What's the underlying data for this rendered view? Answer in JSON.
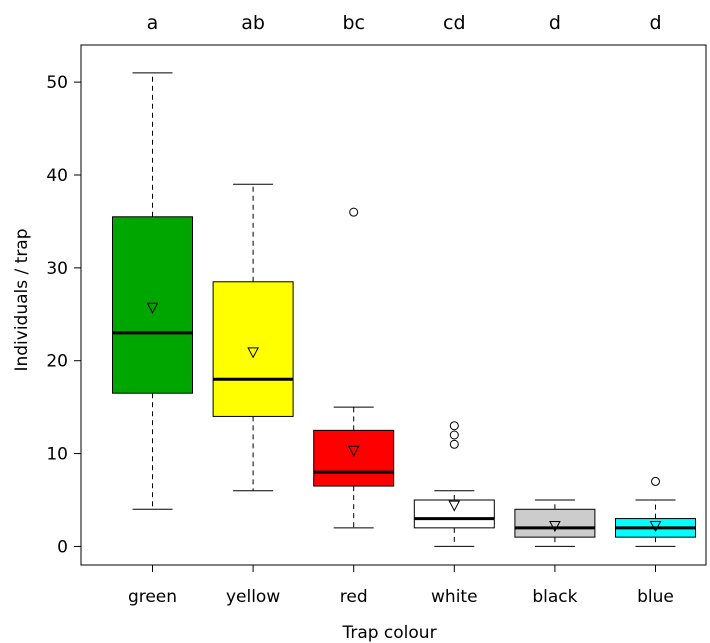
{
  "chart_data": {
    "type": "box",
    "xlabel": "Trap colour",
    "ylabel": "Individuals / trap",
    "ylim": [
      -2,
      54
    ],
    "yticks": [
      0,
      10,
      20,
      30,
      40,
      50
    ],
    "grid": false,
    "legend": "none",
    "categories": [
      "green",
      "yellow",
      "red",
      "white",
      "black",
      "blue"
    ],
    "significance_letters": [
      "a",
      "ab",
      "bc",
      "cd",
      "d",
      "d"
    ],
    "box_colors": [
      "#00a600",
      "#ffff00",
      "#ff0000",
      "#ffffff",
      "#cccccc",
      "#00ffff"
    ],
    "boxes": [
      {
        "category": "green",
        "whisker_low": 4,
        "q1": 16.5,
        "median": 23,
        "q3": 35.5,
        "whisker_high": 51,
        "mean": 25.7,
        "outliers": []
      },
      {
        "category": "yellow",
        "whisker_low": 6,
        "q1": 14,
        "median": 18,
        "q3": 28.5,
        "whisker_high": 39,
        "mean": 20.9,
        "outliers": []
      },
      {
        "category": "red",
        "whisker_low": 2,
        "q1": 6.5,
        "median": 8,
        "q3": 12.5,
        "whisker_high": 15,
        "mean": 10.3,
        "outliers": [
          36
        ]
      },
      {
        "category": "white",
        "whisker_low": 0,
        "q1": 2,
        "median": 3,
        "q3": 5,
        "whisker_high": 6,
        "mean": 4.4,
        "outliers": [
          11,
          12,
          13
        ]
      },
      {
        "category": "black",
        "whisker_low": 0,
        "q1": 1,
        "median": 2,
        "q3": 4,
        "whisker_high": 5,
        "mean": 2.2,
        "outliers": []
      },
      {
        "category": "blue",
        "whisker_low": 0,
        "q1": 1,
        "median": 2,
        "q3": 3,
        "whisker_high": 5,
        "mean": 2.2,
        "outliers": [
          7
        ]
      }
    ]
  }
}
